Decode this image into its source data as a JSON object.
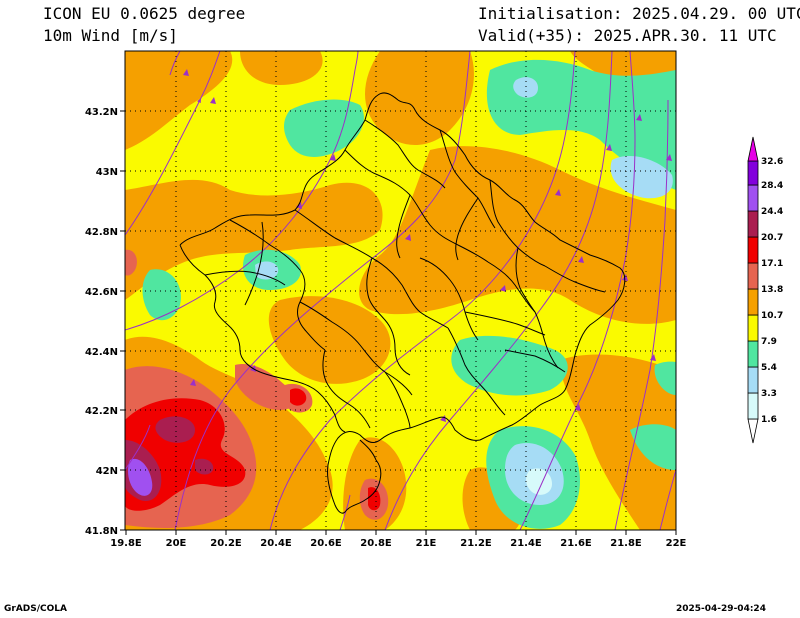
{
  "header": {
    "model": "ICON EU 0.0625 degree",
    "field": "10m Wind [m/s]",
    "init": "Initialisation: 2025.04.29. 00 UTC",
    "valid": "Valid(+35): 2025.APR.30. 11 UTC"
  },
  "footer": {
    "credit": "GrADS/COLA",
    "timestamp": "2025-04-29-04:24"
  },
  "map": {
    "lon_ticks": [
      "19.8E",
      "20E",
      "20.2E",
      "20.4E",
      "20.6E",
      "20.8E",
      "21E",
      "21.2E",
      "21.4E",
      "21.6E",
      "21.8E",
      "22E"
    ],
    "lat_ticks": [
      "41.8N",
      "42N",
      "42.2N",
      "42.4N",
      "42.6N",
      "42.8N",
      "43N",
      "43.2N"
    ],
    "lon_range": [
      19.8,
      22.0
    ],
    "lat_range": [
      41.8,
      43.4
    ]
  },
  "colorbar": {
    "levels": [
      "1.6",
      "3.3",
      "5.4",
      "7.9",
      "10.7",
      "13.8",
      "17.1",
      "20.7",
      "24.4",
      "28.4",
      "32.6"
    ],
    "colors": [
      "#d7fafa",
      "#a6dcf5",
      "#50e6a0",
      "#fafa00",
      "#f5a000",
      "#e66450",
      "#f00000",
      "#aa1e50",
      "#a050f0",
      "#8200dc",
      "#e600e6"
    ]
  },
  "fill_colors": {
    "calm": "#d7fafa",
    "light": "#a6dcf5",
    "moderate": "#50e6a0",
    "fresh": "#fafa00",
    "strong": "#f5a000",
    "gale": "#e66450",
    "storm": "#f00000",
    "severe": "#aa1e50",
    "extreme": "#a050f0",
    "streamline": "#9b30c8"
  }
}
